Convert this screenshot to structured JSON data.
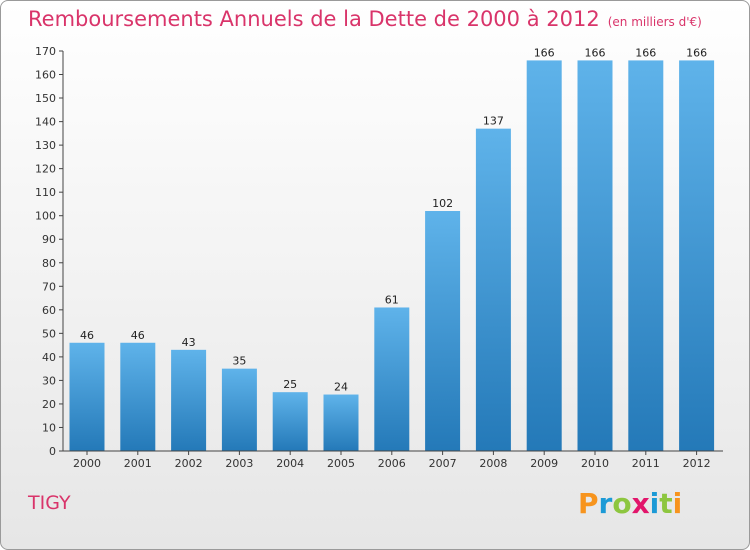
{
  "chart_data": {
    "type": "bar",
    "title": "Remboursements Annuels de la Dette de 2000 à 2012",
    "unit_label": "(en milliers d'€)",
    "categories": [
      "2000",
      "2001",
      "2002",
      "2003",
      "2004",
      "2005",
      "2006",
      "2007",
      "2008",
      "2009",
      "2010",
      "2011",
      "2012"
    ],
    "values": [
      46,
      46,
      43,
      35,
      25,
      24,
      61,
      102,
      137,
      166,
      166,
      166,
      166
    ],
    "ylim": [
      0,
      170
    ],
    "ytick_step": 10,
    "grid": false,
    "xlabel": "",
    "ylabel": ""
  },
  "commune": "TIGY",
  "logo": {
    "letters": [
      "P",
      "r",
      "o",
      "x",
      "i",
      "t",
      "i"
    ],
    "colors": [
      "#f7941d",
      "#1c9ad6",
      "#8dc63f",
      "#e2156b",
      "#1c9ad6",
      "#8dc63f",
      "#f7941d"
    ]
  },
  "colors": {
    "bar_top": "#5fb3ea",
    "bar_bottom": "#2479b8",
    "accent": "#d9346a"
  }
}
